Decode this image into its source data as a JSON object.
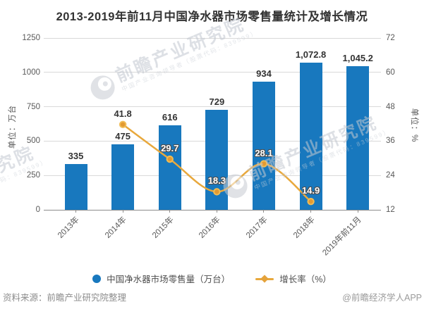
{
  "chart_data": {
    "type": "bar",
    "combo": "bar+line",
    "title": "2013-2019年前11月中国净水器市场零售量统计及增长情况",
    "categories": [
      "2013年",
      "2014年",
      "2015年",
      "2016年",
      "2017年",
      "2018年",
      "2019年前11月"
    ],
    "series": [
      {
        "name": "中国净水器市场零售量（万台）",
        "type": "bar",
        "axis": "left",
        "values": [
          335,
          475,
          616,
          729,
          934,
          1072.8,
          1045.2
        ],
        "value_labels": [
          "335",
          "475",
          "616",
          "729",
          "934",
          "1,072.8",
          "1,045.2"
        ]
      },
      {
        "name": "增长率（%）",
        "type": "line",
        "axis": "right",
        "smooth": true,
        "values": [
          null,
          41.8,
          29.7,
          18.3,
          28.1,
          14.9,
          null
        ],
        "value_labels": [
          "",
          "41.8",
          "29.7",
          "18.3",
          "28.1",
          "14.9",
          ""
        ]
      }
    ],
    "left_axis": {
      "name": "单位：万台",
      "min": 0,
      "max": 1250,
      "ticks": [
        0,
        250,
        500,
        750,
        1000,
        1250
      ]
    },
    "right_axis": {
      "name": "单位：%",
      "min": 12,
      "max": 72,
      "ticks": [
        12,
        24,
        36,
        48,
        60,
        72
      ]
    },
    "grid": "horizontal",
    "legend_position": "bottom"
  },
  "legend": {
    "items": [
      {
        "label": "中国净水器市场零售量（万台）",
        "marker": "circle",
        "color": "#1878BE"
      },
      {
        "label": "增长率（%）",
        "marker": "line-diamond",
        "color": "#E5A33C"
      }
    ]
  },
  "watermark": {
    "big": "前瞻产业研究院",
    "small": "中国产业咨询领导者（股票代码：839599）"
  },
  "footer": {
    "source": "资料来源：前瞻产业研究院整理",
    "credit": "@前瞻经济学人APP"
  },
  "colors": {
    "bar": "#1878BE",
    "line": "#E8A83C",
    "marker_fill": "#E39A31",
    "marker_ring": "#F0BC55",
    "grid": "#D9D9D9",
    "axis_line": "#8C8C8C",
    "tick_text": "#595959",
    "label_dark": "#333333",
    "label_light": "#FFFFFF"
  }
}
